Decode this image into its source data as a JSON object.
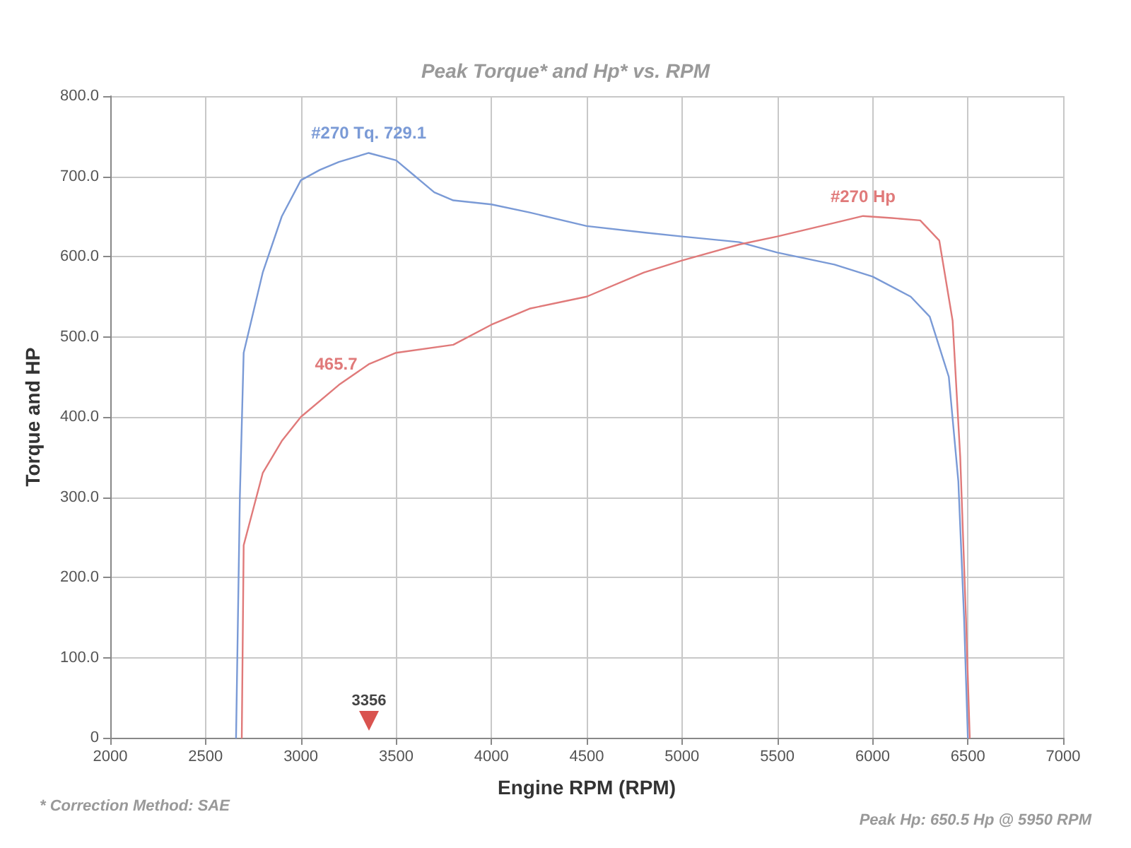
{
  "chart_data": {
    "type": "line",
    "title": "Peak Torque* and Hp* vs. RPM",
    "xlabel": "Engine RPM (RPM)",
    "ylabel": "Torque and HP",
    "xlim": [
      2000,
      7000
    ],
    "xticks": [
      2000,
      2500,
      3000,
      3500,
      4000,
      4500,
      5000,
      5500,
      6000,
      6500,
      7000
    ],
    "ylim": [
      0,
      800
    ],
    "yticks": [
      {
        "value": 0,
        "label": "0"
      },
      {
        "value": 100,
        "label": "100.0"
      },
      {
        "value": 200,
        "label": "200.0"
      },
      {
        "value": 300,
        "label": "300.0"
      },
      {
        "value": 400,
        "label": "400.0"
      },
      {
        "value": 500,
        "label": "500.0"
      },
      {
        "value": 600,
        "label": "600.0"
      },
      {
        "value": 700,
        "label": "700.0"
      },
      {
        "value": 800,
        "label": "800.0"
      }
    ],
    "grid": true,
    "marker": "none",
    "line_style": "solid",
    "series": [
      {
        "name": "#270 Tq.",
        "color": "#7a9ad6",
        "x": [
          2660,
          2680,
          2700,
          2750,
          2800,
          2900,
          3000,
          3100,
          3200,
          3356,
          3500,
          3600,
          3700,
          3800,
          4000,
          4200,
          4500,
          4800,
          5000,
          5300,
          5500,
          5800,
          6000,
          6200,
          6300,
          6400,
          6450,
          6480,
          6500
        ],
        "values": [
          0,
          300,
          480,
          530,
          580,
          650,
          695,
          708,
          718,
          729.1,
          720,
          700,
          680,
          670,
          665,
          655,
          638,
          630,
          625,
          618,
          605,
          590,
          575,
          550,
          525,
          450,
          320,
          150,
          0
        ],
        "value_labels": [
          null,
          null,
          null,
          null,
          null,
          null,
          null,
          null,
          null,
          "729.1",
          null,
          null,
          null,
          null,
          null,
          null,
          null,
          null,
          null,
          null,
          null,
          null,
          null,
          null,
          null,
          null,
          null,
          null,
          null
        ]
      },
      {
        "name": "#270 Hp",
        "color": "#e07a7a",
        "x": [
          2690,
          2700,
          2800,
          2900,
          3000,
          3200,
          3356,
          3500,
          3800,
          4000,
          4200,
          4500,
          4800,
          5000,
          5300,
          5500,
          5800,
          5950,
          6100,
          6250,
          6350,
          6420,
          6460,
          6490,
          6510
        ],
        "values": [
          0,
          240,
          330,
          370,
          400,
          440,
          465.7,
          480,
          490,
          515,
          535,
          550,
          580,
          595,
          615,
          625,
          642,
          650.5,
          648,
          645,
          620,
          520,
          350,
          150,
          0
        ],
        "value_labels": [
          null,
          null,
          null,
          null,
          null,
          null,
          "465.7",
          null,
          null,
          null,
          null,
          null,
          null,
          null,
          null,
          null,
          null,
          null,
          null,
          null,
          null,
          null,
          null,
          null,
          null
        ]
      }
    ],
    "annotations": [
      "3356",
      "* Correction Method: SAE",
      "Peak Hp: 650.5 Hp @ 5950 RPM"
    ]
  }
}
